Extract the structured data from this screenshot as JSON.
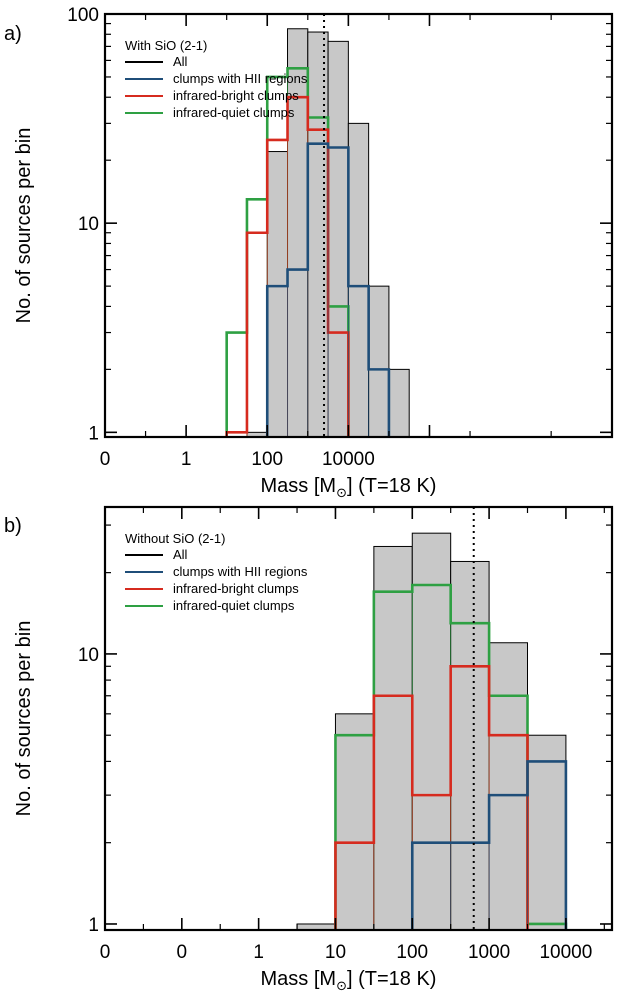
{
  "chart_data": [
    {
      "type": "histogram",
      "panel_label": "a)",
      "legend_title": "With SiO (2-1)",
      "xlabel_main": "Mass [M",
      "xlabel_sub": "⊙",
      "xlabel_tail": "] (T=18 K)",
      "ylabel": "No. of sources per bin",
      "y_scale": "log",
      "ylim": [
        0.95,
        100
      ],
      "xlim": [
        0,
        6.25
      ],
      "x_tick_positions": [
        0,
        1,
        2,
        3,
        4
      ],
      "x_tick_labels": [
        "0",
        "1",
        "100",
        "10000",
        ""
      ],
      "y_ticks": [
        1,
        10,
        100
      ],
      "y_tick_labels": [
        "1",
        "10",
        "100"
      ],
      "bin_width": 0.25,
      "bin_starts": [
        1.5,
        1.75,
        2.0,
        2.25,
        2.5,
        2.75,
        3.0,
        3.25,
        3.5,
        3.75,
        4.0,
        4.25
      ],
      "median_line_x": 2.7,
      "series": [
        {
          "name": "All",
          "color": "#000000",
          "fill": "#c8c8c8",
          "values": [
            null,
            1,
            22,
            85,
            82,
            74,
            30,
            5,
            2,
            null,
            null,
            null
          ]
        },
        {
          "name": "clumps with HII regions",
          "color": "#1f4e79",
          "values": [
            null,
            null,
            5,
            6,
            24,
            23,
            5,
            2,
            null,
            null,
            null,
            null
          ]
        },
        {
          "name": "infrared-bright clumps",
          "color": "#d62b1f",
          "values": [
            1,
            9,
            25,
            40,
            28,
            3,
            null,
            null,
            null,
            null,
            null,
            null
          ]
        },
        {
          "name": "infrared-quiet clumps",
          "color": "#2ea043",
          "values": [
            3,
            13,
            50,
            55,
            32,
            4,
            null,
            null,
            null,
            null,
            null,
            null
          ]
        }
      ],
      "legend_position": "top-left"
    },
    {
      "type": "histogram",
      "panel_label": "b)",
      "legend_title": "Without SiO (2-1)",
      "xlabel_main": "Mass [M",
      "xlabel_sub": "⊙",
      "xlabel_tail": "] (T=18 K)",
      "ylabel": "No. of sources per bin",
      "y_scale": "log",
      "ylim": [
        0.95,
        35
      ],
      "xlim": [
        -2.0,
        4.6
      ],
      "x_tick_positions": [
        -2,
        -1,
        0,
        1,
        2,
        3,
        4
      ],
      "x_tick_labels": [
        "0",
        "0",
        "1",
        "10",
        "100",
        "1000",
        "10000"
      ],
      "y_ticks": [
        1,
        10
      ],
      "y_tick_labels": [
        "1",
        "10"
      ],
      "bin_width": 0.5,
      "bin_starts": [
        0.5,
        1.0,
        1.5,
        2.0,
        2.5,
        3.0,
        3.5
      ],
      "median_line_x": 2.8,
      "series": [
        {
          "name": "All",
          "color": "#000000",
          "fill": "#c8c8c8",
          "values": [
            1,
            6,
            25,
            28,
            22,
            11,
            5
          ]
        },
        {
          "name": "clumps with HII regions",
          "color": "#1f4e79",
          "values": [
            null,
            null,
            null,
            2,
            2,
            3,
            4
          ]
        },
        {
          "name": "infrared-bright clumps",
          "color": "#d62b1f",
          "values": [
            null,
            2,
            7,
            3,
            9,
            5,
            null
          ]
        },
        {
          "name": "infrared-quiet clumps",
          "color": "#2ea043",
          "values": [
            null,
            5,
            17,
            18,
            13,
            7,
            1
          ]
        }
      ],
      "legend_position": "top-left"
    }
  ]
}
